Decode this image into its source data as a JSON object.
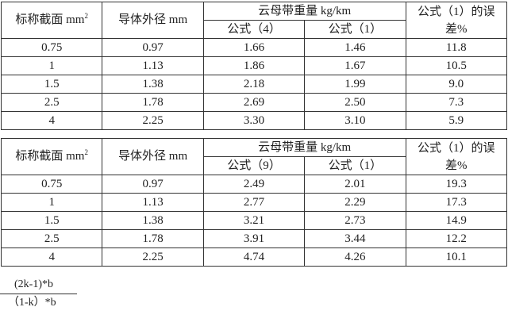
{
  "tables": [
    {
      "header": {
        "col1": "标称截面 mm",
        "col1_sup": "2",
        "col2": "导体外径 mm",
        "group": "云母带重量 kg/km",
        "sub1": "公式（4）",
        "sub2": "公式（1）",
        "err_line1": "公式（1）的误",
        "err_line2": "差%"
      },
      "rows": [
        [
          "0.75",
          "0.97",
          "1.66",
          "1.46",
          "11.8"
        ],
        [
          "1",
          "1.13",
          "1.86",
          "1.67",
          "10.5"
        ],
        [
          "1.5",
          "1.38",
          "2.18",
          "1.99",
          "9.0"
        ],
        [
          "2.5",
          "1.78",
          "2.69",
          "2.50",
          "7.3"
        ],
        [
          "4",
          "2.25",
          "3.30",
          "3.10",
          "5.9"
        ]
      ]
    },
    {
      "header": {
        "col1": "标称截面 mm",
        "col1_sup": "2",
        "col2": "导体外径 mm",
        "group": "云母带重量 kg/km",
        "sub1": "公式（9）",
        "sub2": "公式（1）",
        "err_line1": "公式（1）的误",
        "err_line2": "差%"
      },
      "rows": [
        [
          "0.75",
          "0.97",
          "2.49",
          "2.01",
          "19.3"
        ],
        [
          "1",
          "1.13",
          "2.77",
          "2.29",
          "17.3"
        ],
        [
          "1.5",
          "1.38",
          "3.21",
          "2.73",
          "14.9"
        ],
        [
          "2.5",
          "1.78",
          "3.91",
          "3.44",
          "12.2"
        ],
        [
          "4",
          "2.25",
          "4.74",
          "4.26",
          "10.1"
        ]
      ]
    }
  ],
  "fraction": {
    "numerator": "(2k-1)*b",
    "denominator": "（1-k）*b"
  }
}
